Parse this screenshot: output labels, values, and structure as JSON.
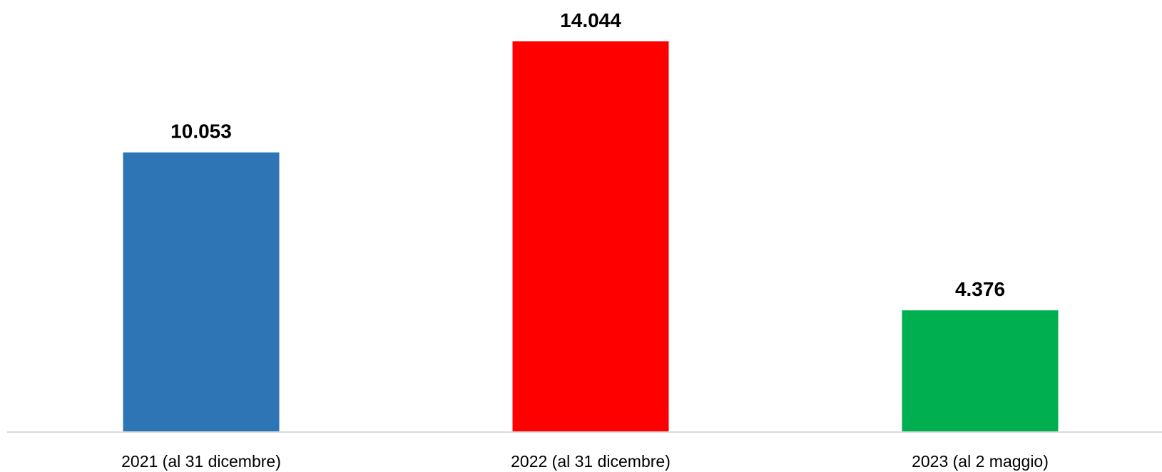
{
  "chart_data": {
    "type": "bar",
    "categories": [
      "2021 (al 31 dicembre)",
      "2022 (al 31 dicembre)",
      "2023 (al 2 maggio)"
    ],
    "values": [
      10053,
      14044,
      4376
    ],
    "value_labels": [
      "10.053",
      "14.044",
      "4.376"
    ],
    "bar_colors": [
      "#2e75b6",
      "#ff0000",
      "#00b050"
    ],
    "title": "",
    "xlabel": "",
    "ylabel": "",
    "ylim": [
      0,
      14044
    ],
    "grid": false,
    "legend": "none"
  }
}
